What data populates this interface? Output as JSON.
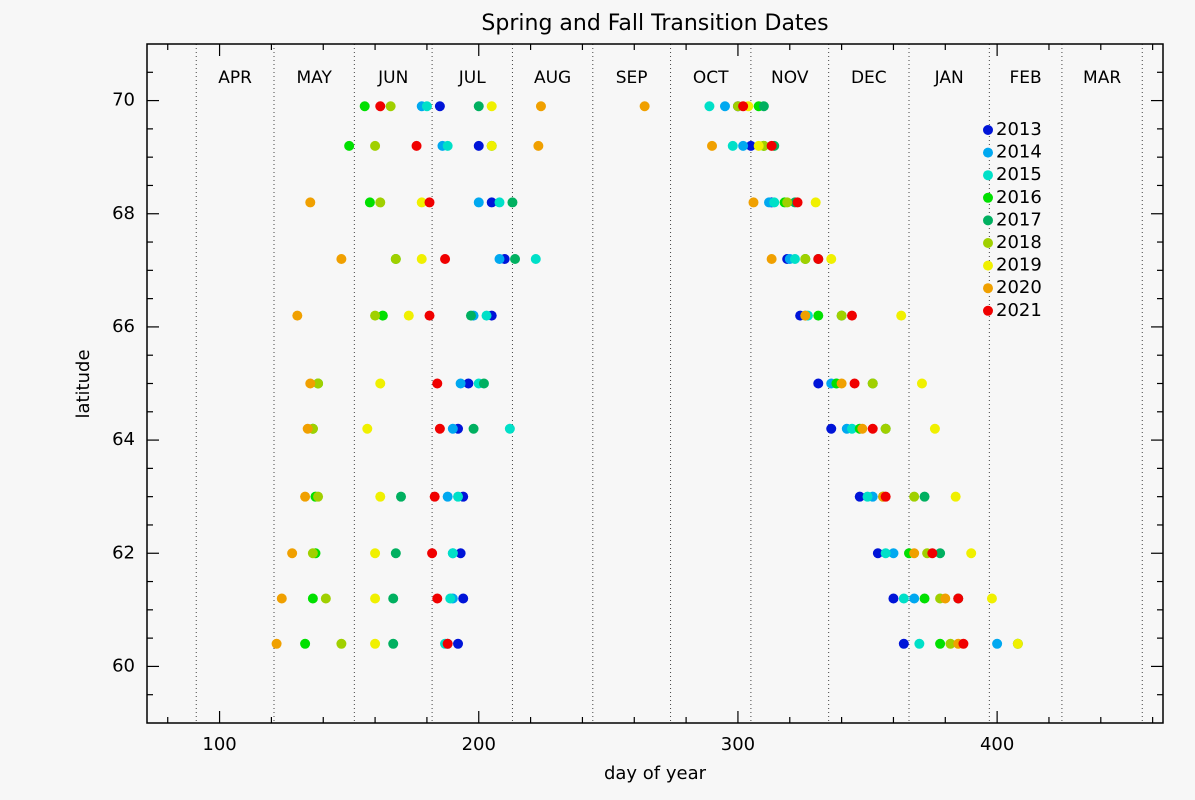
{
  "chart_data": {
    "type": "scatter",
    "title": "Spring and Fall Transition Dates",
    "xlabel": "day of year",
    "ylabel": "latitude",
    "xlim": [
      72,
      464
    ],
    "ylim": [
      59,
      71
    ],
    "xticks": [
      100,
      200,
      300,
      400
    ],
    "xminorticks": [
      80,
      120,
      140,
      160,
      180,
      220,
      240,
      260,
      280,
      320,
      340,
      360,
      380,
      420,
      440,
      460
    ],
    "yticks": [
      60,
      62,
      64,
      66,
      68,
      70
    ],
    "yminorticks": [
      59.5,
      60.5,
      61,
      61.5,
      62.5,
      63,
      63.5,
      64.5,
      65,
      65.5,
      66.5,
      67,
      67.5,
      68.5,
      69,
      69.5,
      70.5
    ],
    "month_lines": [
      91,
      121,
      152,
      182,
      213,
      244,
      274,
      305,
      335,
      366,
      397,
      425,
      456
    ],
    "months": [
      "APR",
      "MAY",
      "JUN",
      "JUL",
      "AUG",
      "SEP",
      "OCT",
      "NOV",
      "DEC",
      "JAN",
      "FEB",
      "MAR"
    ],
    "legend": "upper right",
    "series": [
      {
        "name": "2013",
        "color": "#0014d8",
        "x": [
          192,
          194,
          193,
          194,
          192,
          196,
          205,
          210,
          205,
          200,
          185,
          364,
          360,
          354,
          347,
          336,
          331,
          324,
          319,
          313,
          305,
          300
        ],
        "y": [
          60.4,
          61.2,
          62.0,
          63.0,
          64.2,
          65.0,
          66.2,
          67.2,
          68.2,
          69.2,
          69.9,
          60.4,
          61.2,
          62.0,
          63.0,
          64.2,
          65.0,
          66.2,
          67.2,
          68.2,
          69.2,
          69.9
        ]
      },
      {
        "name": "2014",
        "color": "#00a8f0",
        "x": [
          188,
          190,
          190,
          188,
          190,
          193,
          198,
          208,
          200,
          186,
          178,
          400,
          368,
          360,
          352,
          342,
          336,
          326,
          320,
          312,
          302,
          295
        ],
        "y": [
          60.4,
          61.2,
          62.0,
          63.0,
          64.2,
          65.0,
          66.2,
          67.2,
          68.2,
          69.2,
          69.9,
          60.4,
          61.2,
          62.0,
          63.0,
          64.2,
          65.0,
          66.2,
          67.2,
          68.2,
          69.2,
          69.9
        ]
      },
      {
        "name": "2015",
        "color": "#00e0c8",
        "x": [
          187,
          189,
          190,
          192,
          212,
          200,
          203,
          222,
          208,
          188,
          180,
          370,
          364,
          357,
          350,
          344,
          338,
          327,
          322,
          314,
          298,
          289
        ],
        "y": [
          60.4,
          61.2,
          62.0,
          63.0,
          64.2,
          65.0,
          66.2,
          67.2,
          68.2,
          69.2,
          69.9,
          60.4,
          61.2,
          62.0,
          63.0,
          64.2,
          65.0,
          66.2,
          67.2,
          68.2,
          69.2,
          69.9
        ]
      },
      {
        "name": "2016",
        "color": "#00e000",
        "x": [
          133,
          136,
          137,
          137,
          136,
          138,
          163,
          168,
          158,
          150,
          156,
          378,
          372,
          366,
          356,
          347,
          338,
          331,
          326,
          318,
          310,
          308
        ],
        "y": [
          60.4,
          61.2,
          62.0,
          63.0,
          64.2,
          65.0,
          66.2,
          67.2,
          68.2,
          69.2,
          69.9,
          60.4,
          61.2,
          62.0,
          63.0,
          64.2,
          65.0,
          66.2,
          67.2,
          68.2,
          69.2,
          69.9
        ]
      },
      {
        "name": "2017",
        "color": "#00b060",
        "x": [
          167,
          167,
          168,
          170,
          198,
          202,
          197,
          214,
          213,
          205,
          200,
          408,
          385,
          378,
          372,
          357,
          352,
          340,
          331,
          322,
          314,
          310
        ],
        "y": [
          60.4,
          61.2,
          62.0,
          63.0,
          64.2,
          65.0,
          66.2,
          67.2,
          68.2,
          69.2,
          69.9,
          60.4,
          61.2,
          62.0,
          63.0,
          64.2,
          65.0,
          66.2,
          67.2,
          68.2,
          69.2,
          69.9
        ]
      },
      {
        "name": "2018",
        "color": "#a0d000",
        "x": [
          147,
          141,
          136,
          138,
          136,
          138,
          160,
          168,
          162,
          160,
          166,
          382,
          378,
          373,
          368,
          357,
          352,
          340,
          326,
          319,
          310,
          300
        ],
        "y": [
          60.4,
          61.2,
          62.0,
          63.0,
          64.2,
          65.0,
          66.2,
          67.2,
          68.2,
          69.2,
          69.9,
          60.4,
          61.2,
          62.0,
          63.0,
          64.2,
          65.0,
          66.2,
          67.2,
          68.2,
          69.2,
          69.9
        ]
      },
      {
        "name": "2019",
        "color": "#f0f000",
        "x": [
          160,
          160,
          160,
          162,
          157,
          162,
          173,
          178,
          178,
          205,
          205,
          408,
          398,
          390,
          384,
          376,
          371,
          363,
          336,
          330,
          308,
          304
        ],
        "y": [
          60.4,
          61.2,
          62.0,
          63.0,
          64.2,
          65.0,
          66.2,
          67.2,
          68.2,
          69.2,
          69.9,
          60.4,
          61.2,
          62.0,
          63.0,
          64.2,
          65.0,
          66.2,
          67.2,
          68.2,
          69.2,
          69.9
        ]
      },
      {
        "name": "2020",
        "color": "#f0a000",
        "x": [
          122,
          124,
          128,
          133,
          134,
          135,
          130,
          147,
          135,
          223,
          224,
          385,
          380,
          368,
          356,
          348,
          340,
          326,
          313,
          306,
          290,
          264
        ],
        "y": [
          60.4,
          61.2,
          62.0,
          63.0,
          64.2,
          65.0,
          66.2,
          67.2,
          68.2,
          69.2,
          69.9,
          60.4,
          61.2,
          62.0,
          63.0,
          64.2,
          65.0,
          66.2,
          67.2,
          68.2,
          69.2,
          69.9
        ]
      },
      {
        "name": "2021",
        "color": "#f00000",
        "x": [
          188,
          184,
          182,
          183,
          185,
          184,
          181,
          187,
          181,
          176,
          162,
          387,
          385,
          375,
          357,
          352,
          345,
          344,
          331,
          323,
          313,
          302
        ],
        "y": [
          60.4,
          61.2,
          62.0,
          63.0,
          64.2,
          65.0,
          66.2,
          67.2,
          68.2,
          69.2,
          69.9,
          60.4,
          61.2,
          62.0,
          63.0,
          64.2,
          65.0,
          66.2,
          67.2,
          68.2,
          69.2,
          69.9
        ]
      }
    ]
  }
}
